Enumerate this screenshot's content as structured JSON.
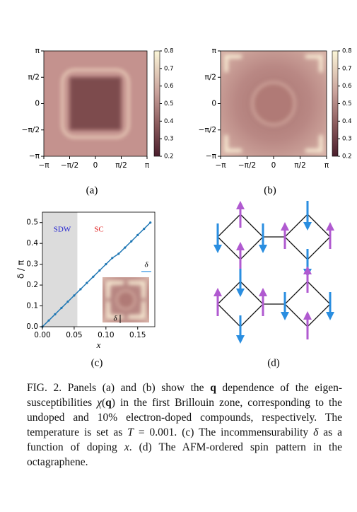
{
  "chart_data": [
    {
      "type": "heatmap",
      "panel_label": "(a)",
      "xlim": [
        -1,
        1
      ],
      "ylim": [
        -1,
        1
      ],
      "xticks": [
        {
          "value": -1,
          "label": "−π"
        },
        {
          "value": -0.5,
          "label": "−π/2"
        },
        0,
        {
          "value": 0.5,
          "label": "π/2"
        },
        {
          "value": 1,
          "label": "π"
        }
      ],
      "yticks": [
        {
          "value": -1,
          "label": "−π"
        },
        {
          "value": -0.5,
          "label": "−π/2"
        },
        0,
        {
          "value": 0.5,
          "label": "π/2"
        },
        {
          "value": 1,
          "label": "π"
        }
      ],
      "colorbar": {
        "lim": [
          0.2,
          0.8
        ],
        "ticks": [
          0.2,
          0.3,
          0.4,
          0.5,
          0.6,
          0.7,
          0.8
        ]
      }
    },
    {
      "type": "heatmap",
      "panel_label": "(b)",
      "xlim": [
        -1,
        1
      ],
      "ylim": [
        -1,
        1
      ],
      "xticks": [
        {
          "value": -1,
          "label": "−π"
        },
        {
          "value": -0.5,
          "label": "−π/2"
        },
        0,
        {
          "value": 0.5,
          "label": "π/2"
        },
        {
          "value": 1,
          "label": "π"
        }
      ],
      "yticks": [
        {
          "value": -1,
          "label": "−π"
        },
        {
          "value": -0.5,
          "label": "−π/2"
        },
        0,
        {
          "value": 0.5,
          "label": "π/2"
        },
        {
          "value": 1,
          "label": "π"
        }
      ],
      "colorbar": {
        "lim": [
          0.2,
          0.8
        ],
        "ticks": [
          0.2,
          0.3,
          0.4,
          0.5,
          0.6,
          0.7,
          0.8
        ]
      }
    },
    {
      "type": "line",
      "panel_label": "(c)",
      "xlabel": "x",
      "ylabel": "δ / π",
      "x": [
        0,
        0.01,
        0.02,
        0.03,
        0.04,
        0.05,
        0.06,
        0.07,
        0.08,
        0.09,
        0.1,
        0.11,
        0.12,
        0.13,
        0.14,
        0.15,
        0.16,
        0.17
      ],
      "values": [
        0,
        0.03,
        0.06,
        0.09,
        0.12,
        0.15,
        0.18,
        0.21,
        0.24,
        0.27,
        0.3,
        0.33,
        0.35,
        0.38,
        0.41,
        0.44,
        0.47,
        0.5
      ],
      "color": "#1f77b4",
      "xlim": [
        0,
        0.177
      ],
      "ylim": [
        0,
        0.55
      ],
      "xticks": [
        {
          "value": 0,
          "label": "0.00"
        },
        {
          "value": 0.05,
          "label": "0.05"
        },
        {
          "value": 0.1,
          "label": "0.10"
        },
        {
          "value": 0.15,
          "label": "0.15"
        }
      ],
      "yticks": [
        {
          "value": 0,
          "label": "0.0"
        },
        {
          "value": 0.1,
          "label": "0.1"
        },
        {
          "value": 0.2,
          "label": "0.2"
        },
        {
          "value": 0.3,
          "label": "0.3"
        },
        {
          "value": 0.4,
          "label": "0.4"
        },
        {
          "value": 0.5,
          "label": "0.5"
        }
      ],
      "shade_x": [
        0,
        0.055
      ],
      "annotations": [
        {
          "text": "SDW",
          "color": "#1f1fd0"
        },
        {
          "text": "SC",
          "color": "#e02020"
        }
      ],
      "inset_labels": [
        "δ",
        "δ"
      ]
    }
  ],
  "diagram": {
    "panel_label": "(d)"
  },
  "caption": [
    "FIG. 2. Panels (a) and (b) show the ",
    "q",
    " dependence of the eigen-susceptibilities ",
    "χ",
    "(",
    "q",
    ")",
    " in the first Brillouin zone, corresponding to the undoped and 10% electron-doped compounds, respectively. The temperature is set as ",
    "T",
    " = 0.001. (c) The incommensurability ",
    "δ",
    " as a function of doping ",
    "x",
    ". (d) The AFM-ordered spin pattern in the octagraphene."
  ]
}
